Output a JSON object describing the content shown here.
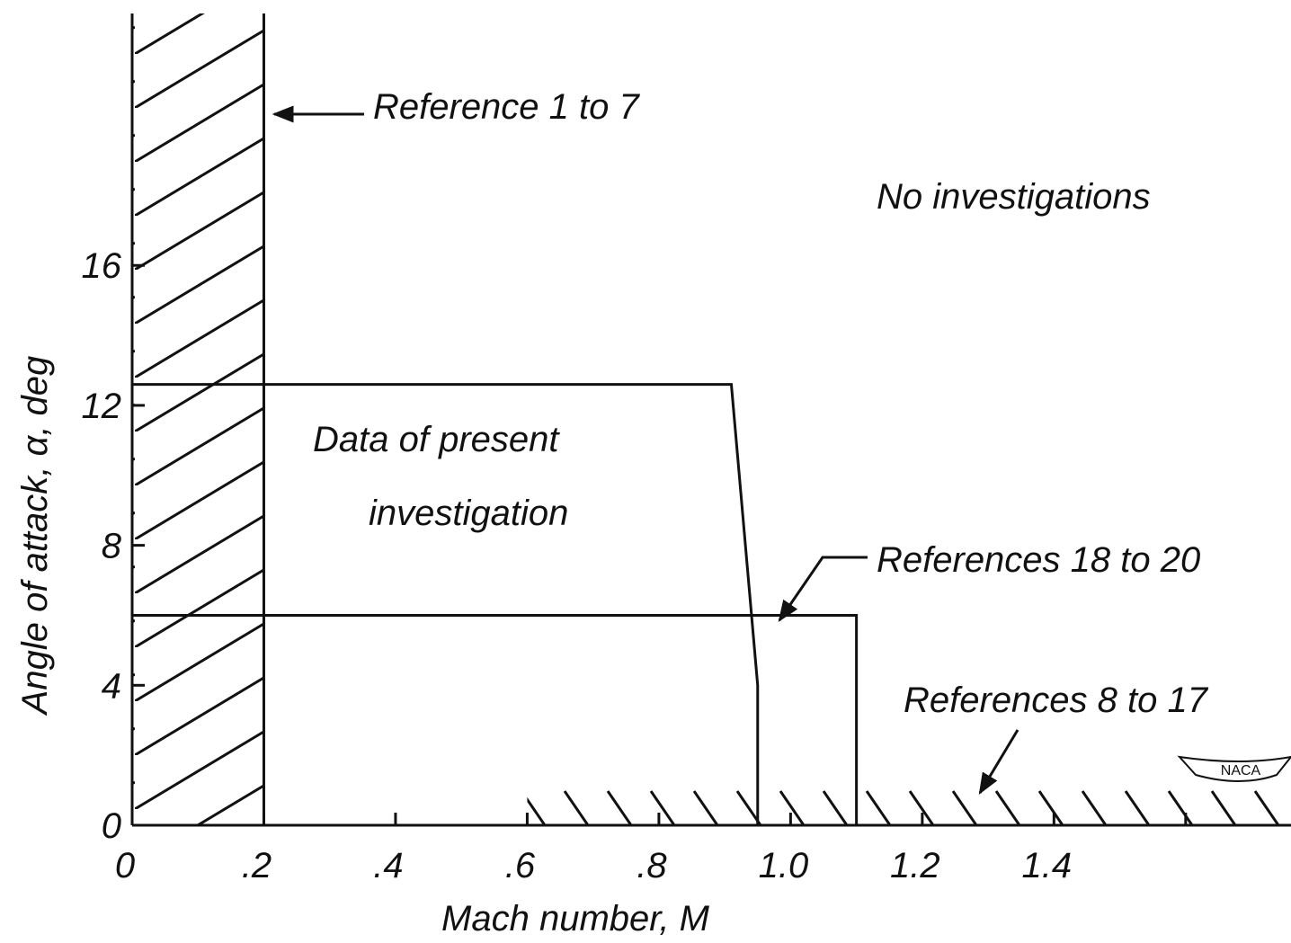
{
  "chart_data": {
    "type": "region",
    "xlabel": "Mach number, M",
    "ylabel": "Angle of attack, α, deg",
    "xlim": [
      0,
      1.76
    ],
    "ylim": [
      0,
      23.2
    ],
    "xticks": [
      0,
      {
        "value": 0.2,
        "label": ".2"
      },
      {
        "value": 0.4,
        "label": ".4"
      },
      {
        "value": 0.6,
        "label": ".6"
      },
      {
        "value": 0.8,
        "label": ".8"
      },
      {
        "value": 1.0,
        "label": "1.0"
      },
      1.2,
      1.4
    ],
    "minor_xticks": [
      1.6
    ],
    "yticks": [
      0,
      4,
      8,
      12,
      16
    ],
    "annotation": "No investigations",
    "logo": "NACA",
    "regions": [
      {
        "label": "Reference 1 to 7",
        "hatch": "/",
        "x": [
          0,
          0.2,
          0.2,
          0
        ],
        "y": [
          0,
          0,
          23.2,
          23.2
        ]
      },
      {
        "label": [
          "Data of present",
          "investigation"
        ],
        "x": [
          0,
          0.91,
          0.95,
          0.95
        ],
        "y": [
          12.6,
          12.6,
          4,
          0
        ]
      },
      {
        "label": "References 18 to 20",
        "x": [
          0,
          1.1,
          1.1
        ],
        "y": [
          6,
          6,
          0
        ]
      },
      {
        "label": "References 8 to 17",
        "hatch": "\\",
        "x": [
          0.6,
          1.76,
          1.76,
          0.6
        ],
        "y": [
          0,
          0,
          1,
          1
        ]
      }
    ]
  }
}
